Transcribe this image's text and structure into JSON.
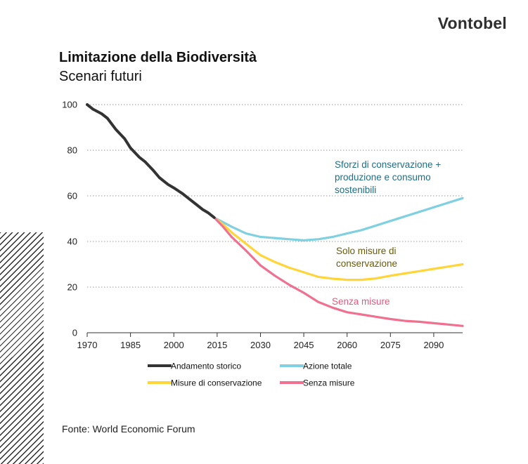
{
  "brand": "Vontobel",
  "source": "Fonte: World Economic Forum",
  "colors": {
    "historic": "#333333",
    "total": "#7fd0e0",
    "conservation": "#ffd53a",
    "none": "#f07090",
    "ann_total": "#1f6e86",
    "ann_conservation": "#6b5a00",
    "ann_none": "#e8577c",
    "grid": "#9a9a9a"
  },
  "chart_data": {
    "type": "line",
    "title": "Limitazione della Biodiversità",
    "subtitle": "Scenari futuri",
    "xlabel": "",
    "ylabel": "",
    "xlim": [
      1970,
      2100
    ],
    "ylim": [
      0,
      100
    ],
    "xticks": [
      1970,
      1985,
      2000,
      2015,
      2030,
      2045,
      2060,
      2075,
      2090
    ],
    "yticks": [
      0,
      20,
      40,
      60,
      80,
      100
    ],
    "grid": "horizontal dotted",
    "series": [
      {
        "key": "historic",
        "name": "Andamento storico",
        "x": [
          1970,
          1972,
          1975,
          1977,
          1980,
          1983,
          1985,
          1988,
          1990,
          1993,
          1995,
          1998,
          2000,
          2003,
          2005,
          2008,
          2010,
          2012,
          2014
        ],
        "values": [
          100,
          98,
          96,
          94,
          89,
          85,
          81,
          77,
          75,
          71,
          68,
          65,
          63.5,
          61,
          59,
          56,
          54,
          52.5,
          50.5
        ]
      },
      {
        "key": "total",
        "name": "Azione totale",
        "x": [
          2014,
          2017,
          2020,
          2025,
          2030,
          2035,
          2040,
          2045,
          2050,
          2055,
          2060,
          2065,
          2070,
          2075,
          2080,
          2085,
          2090,
          2095,
          2100
        ],
        "values": [
          50.5,
          48.5,
          46.5,
          43.5,
          42,
          41.5,
          41,
          40.5,
          41,
          42,
          43.5,
          45,
          47,
          49,
          51,
          53,
          55,
          57,
          59
        ]
      },
      {
        "key": "conservation",
        "name": "Misure di conservazione",
        "x": [
          2014,
          2017,
          2020,
          2025,
          2030,
          2035,
          2040,
          2045,
          2050,
          2055,
          2060,
          2065,
          2070,
          2075,
          2080,
          2085,
          2090,
          2095,
          2100
        ],
        "values": [
          50.5,
          47.5,
          44,
          39,
          34,
          31,
          28.5,
          26.5,
          24.5,
          23.7,
          23.2,
          23.2,
          23.8,
          25,
          26,
          27,
          28,
          29,
          30
        ]
      },
      {
        "key": "none",
        "name": "Senza misure",
        "x": [
          2014,
          2017,
          2020,
          2025,
          2030,
          2035,
          2040,
          2045,
          2050,
          2055,
          2060,
          2065,
          2070,
          2075,
          2080,
          2085,
          2090,
          2095,
          2100
        ],
        "values": [
          50.5,
          46.5,
          42,
          36,
          29.5,
          25,
          21,
          17.5,
          13.5,
          11,
          9,
          8,
          7,
          6,
          5.2,
          4.8,
          4.2,
          3.6,
          3
        ]
      }
    ],
    "annotations": [
      {
        "series": "total",
        "lines": [
          "Sforzi di conservazione +",
          "produzione e consumo",
          "sostenibili"
        ]
      },
      {
        "series": "conservation",
        "lines": [
          "Solo misure di",
          "conservazione"
        ]
      },
      {
        "series": "none",
        "lines": [
          "Senza misure"
        ]
      }
    ],
    "legend": [
      {
        "series": "historic",
        "label": "Andamento storico"
      },
      {
        "series": "total",
        "label": "Azione totale"
      },
      {
        "series": "conservation",
        "label": "Misure di conservazione"
      },
      {
        "series": "none",
        "label": "Senza misure"
      }
    ]
  }
}
